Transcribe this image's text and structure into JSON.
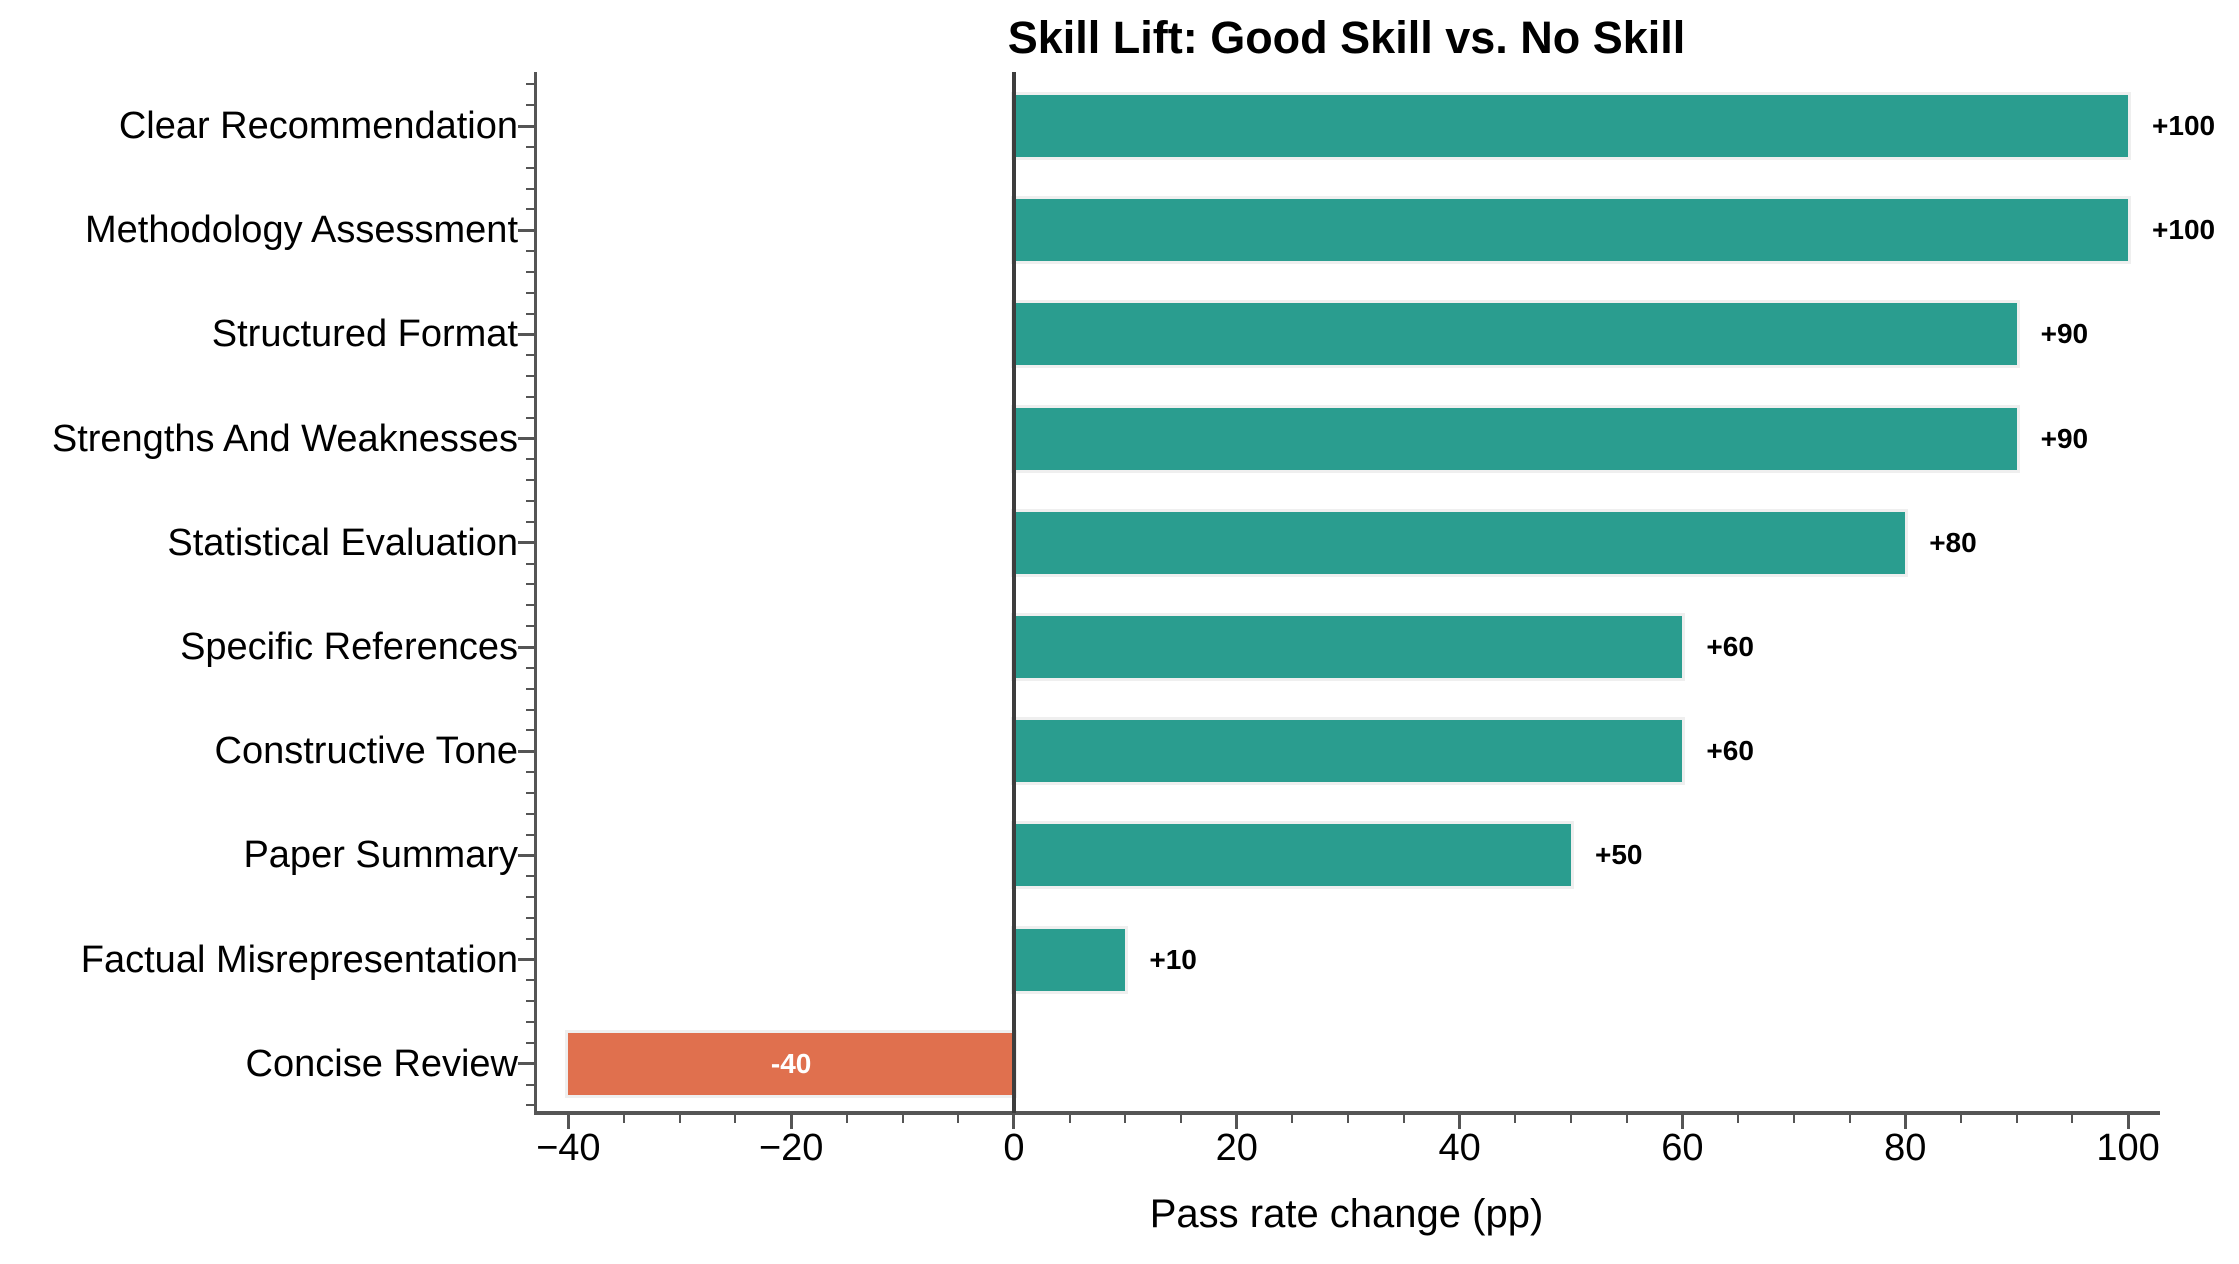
{
  "chart_data": {
    "type": "bar",
    "orientation": "horizontal",
    "title": "Skill Lift: Good Skill vs. No Skill",
    "xlabel": "Pass rate change (pp)",
    "ylabel": "",
    "categories": [
      "Clear Recommendation",
      "Methodology Assessment",
      "Structured Format",
      "Strengths And Weaknesses",
      "Statistical Evaluation",
      "Specific References",
      "Constructive Tone",
      "Paper Summary",
      "Factual Misrepresentation",
      "Concise Review"
    ],
    "values": [
      100,
      100,
      90,
      90,
      80,
      60,
      60,
      50,
      10,
      -40
    ],
    "bar_labels": [
      "+100",
      "+100",
      "+90",
      "+90",
      "+80",
      "+60",
      "+60",
      "+50",
      "+10",
      "-40"
    ],
    "x_ticks": [
      -40,
      -20,
      0,
      20,
      40,
      60,
      80,
      100
    ],
    "x_tick_labels": [
      "−40",
      "−20",
      "0",
      "20",
      "40",
      "60",
      "80",
      "100"
    ],
    "xlim": [
      -42.9,
      102.6
    ],
    "x_minor_step": 5,
    "y_minor_subdivisions": 5,
    "grid": false,
    "legend": null,
    "colors": {
      "positive_bar": "#2a9d8f",
      "negative_bar": "#e0704e",
      "bar_edge": "#efefef",
      "axis": "#555555",
      "zero_line": "#3d3d3d",
      "text": "#000000",
      "negative_label_text": "#ffffff",
      "background": "#ffffff"
    }
  }
}
